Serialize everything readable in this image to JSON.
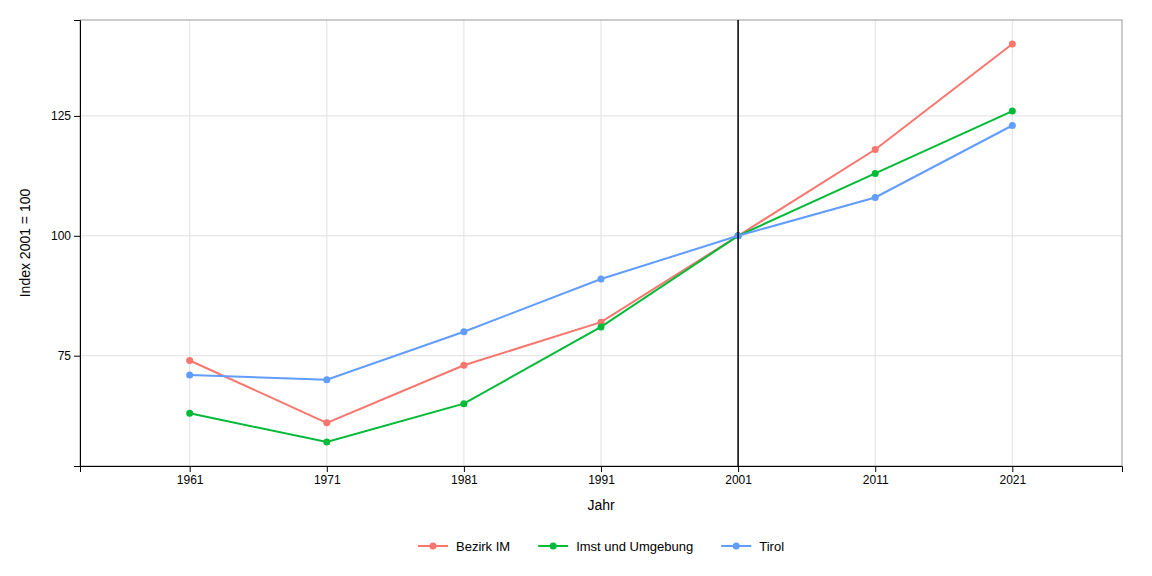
{
  "chart_data": {
    "type": "line",
    "x": [
      1961,
      1971,
      1981,
      1991,
      2001,
      2011,
      2021
    ],
    "series": [
      {
        "name": "Bezirk IM",
        "color": "#F8766D",
        "marker": "circle",
        "values": [
          74,
          61,
          73,
          82,
          100,
          118,
          140
        ]
      },
      {
        "name": "Imst und Umgebung",
        "color": "#00BA38",
        "marker": "circle",
        "values": [
          63,
          57,
          65,
          81,
          100,
          113,
          126
        ]
      },
      {
        "name": "Tirol",
        "color": "#619CFF",
        "marker": "circle",
        "values": [
          71,
          70,
          80,
          91,
          100,
          108,
          123
        ]
      }
    ],
    "x_label": "Jahr",
    "y_label": "Index 2001 = 100",
    "xlim": [
      1953,
      2029
    ],
    "xticks": [
      1961,
      1971,
      1981,
      1991,
      2001,
      2011,
      2021
    ],
    "ylim": [
      52,
      145
    ],
    "yticks": [
      75,
      100,
      125
    ],
    "annotations": [
      {
        "type": "vline",
        "x": 2001,
        "color": "#000000"
      }
    ],
    "grid": true,
    "legend": "bottom"
  }
}
